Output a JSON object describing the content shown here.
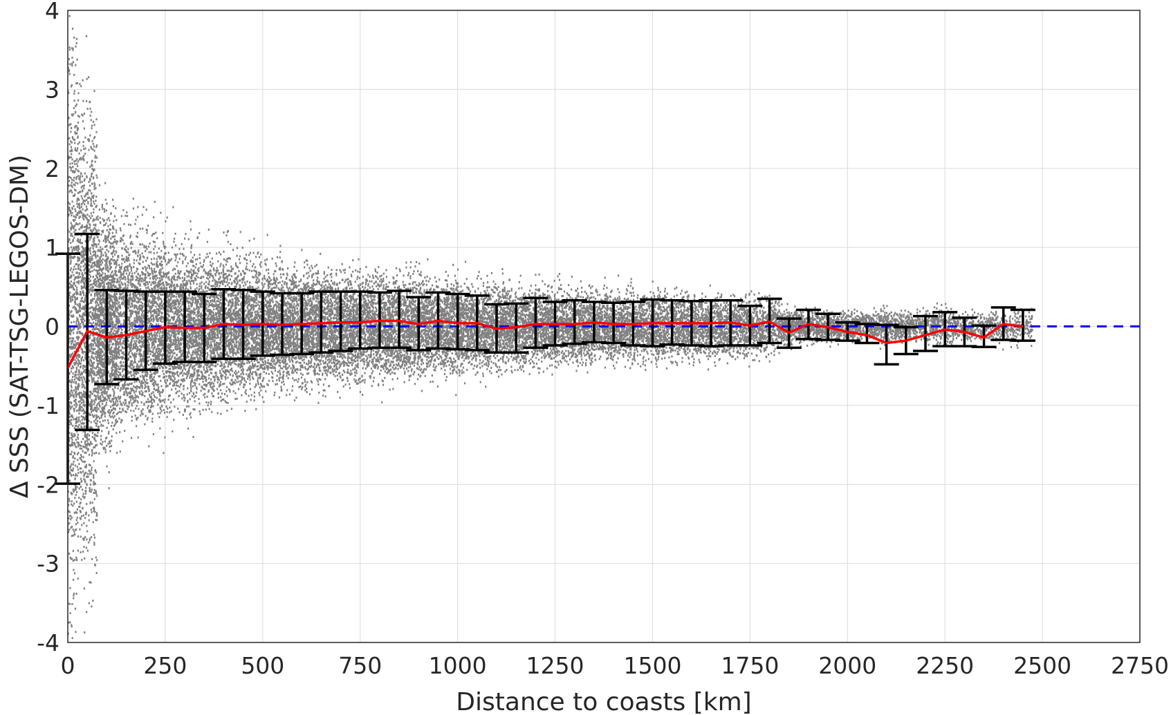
{
  "chart_data": {
    "type": "scatter",
    "xlabel": "Distance to coasts [km]",
    "ylabel": "Δ SSS (SAT-TSG-LEGOS-DM)",
    "xlim": [
      0,
      2750
    ],
    "ylim": [
      -4,
      4
    ],
    "xticks": [
      0,
      250,
      500,
      750,
      1000,
      1250,
      1500,
      1750,
      2000,
      2250,
      2500,
      2750
    ],
    "yticks": [
      -4,
      -3,
      -2,
      -1,
      0,
      1,
      2,
      3,
      4
    ],
    "grid": true,
    "colors": {
      "scatter": "#808080",
      "mean": "#ff0000",
      "errorbar": "#000000",
      "zero": "#0000ff",
      "grid": "#dadada",
      "axis": "#262626"
    },
    "series": [
      {
        "type": "scatter",
        "description_bins": "dense grey cloud of individual differences; spread approximated per 50 km bin",
        "spread_x": [
          0,
          50,
          100,
          150,
          200,
          250,
          300,
          350,
          400,
          450,
          500,
          550,
          600,
          650,
          700,
          750,
          800,
          850,
          900,
          950,
          1000,
          1050,
          1100,
          1150,
          1200,
          1250,
          1300,
          1350,
          1400,
          1450,
          1500,
          1550,
          1600,
          1650,
          1700,
          1750,
          1800,
          1850,
          1900,
          1950,
          2000,
          2050,
          2100,
          2150,
          2200,
          2250,
          2300,
          2350,
          2400,
          2450
        ],
        "spread_halfwidth": [
          4.0,
          3.2,
          1.6,
          1.4,
          1.3,
          1.2,
          1.1,
          1.05,
          1.0,
          0.95,
          0.9,
          0.85,
          0.85,
          0.8,
          0.8,
          0.75,
          0.75,
          0.7,
          0.7,
          0.65,
          0.65,
          0.6,
          0.6,
          0.55,
          0.55,
          0.55,
          0.5,
          0.5,
          0.5,
          0.5,
          0.5,
          0.5,
          0.45,
          0.45,
          0.45,
          0.45,
          0.4,
          0.25,
          0.25,
          0.2,
          0.2,
          0.2,
          0.25,
          0.2,
          0.2,
          0.25,
          0.2,
          0.2,
          0.25,
          0.25
        ]
      },
      {
        "type": "line",
        "name": "mean",
        "x": [
          0,
          50,
          100,
          150,
          200,
          250,
          300,
          350,
          400,
          450,
          500,
          550,
          600,
          650,
          700,
          750,
          800,
          850,
          900,
          950,
          1000,
          1050,
          1100,
          1150,
          1200,
          1250,
          1300,
          1350,
          1400,
          1450,
          1500,
          1550,
          1600,
          1650,
          1700,
          1750,
          1800,
          1850,
          1900,
          1950,
          2000,
          2050,
          2100,
          2150,
          2200,
          2250,
          2300,
          2350,
          2400,
          2450
        ],
        "y": [
          -0.53,
          -0.06,
          -0.14,
          -0.11,
          -0.06,
          -0.01,
          -0.02,
          -0.02,
          0.03,
          0.02,
          0.03,
          0.02,
          0.03,
          0.04,
          0.05,
          0.05,
          0.07,
          0.07,
          0.03,
          0.07,
          0.04,
          0.04,
          -0.03,
          -0.01,
          0.03,
          0.03,
          0.03,
          0.05,
          0.03,
          0.03,
          0.04,
          0.04,
          0.04,
          0.04,
          0.05,
          0.01,
          0.06,
          -0.08,
          0.03,
          -0.01,
          -0.07,
          -0.11,
          -0.21,
          -0.18,
          -0.11,
          -0.04,
          -0.07,
          -0.14,
          0.03,
          0.0
        ]
      },
      {
        "type": "errorbar",
        "name": "std",
        "x": [
          0,
          50,
          100,
          150,
          200,
          250,
          300,
          350,
          400,
          450,
          500,
          550,
          600,
          650,
          700,
          750,
          800,
          850,
          900,
          950,
          1000,
          1050,
          1100,
          1150,
          1200,
          1250,
          1300,
          1350,
          1400,
          1450,
          1500,
          1550,
          1600,
          1650,
          1700,
          1750,
          1800,
          1850,
          1900,
          1950,
          2000,
          2050,
          2100,
          2150,
          2200,
          2250,
          2300,
          2350,
          2400,
          2450
        ],
        "lower": [
          -1.99,
          -1.31,
          -0.73,
          -0.67,
          -0.55,
          -0.47,
          -0.45,
          -0.45,
          -0.41,
          -0.41,
          -0.37,
          -0.36,
          -0.35,
          -0.33,
          -0.31,
          -0.28,
          -0.27,
          -0.27,
          -0.3,
          -0.28,
          -0.29,
          -0.3,
          -0.33,
          -0.33,
          -0.27,
          -0.24,
          -0.22,
          -0.2,
          -0.21,
          -0.24,
          -0.25,
          -0.23,
          -0.24,
          -0.25,
          -0.24,
          -0.24,
          -0.21,
          -0.27,
          -0.16,
          -0.17,
          -0.18,
          -0.21,
          -0.48,
          -0.35,
          -0.31,
          -0.25,
          -0.25,
          -0.26,
          -0.17,
          -0.18
        ],
        "upper": [
          0.92,
          1.17,
          0.46,
          0.45,
          0.44,
          0.44,
          0.44,
          0.41,
          0.47,
          0.46,
          0.44,
          0.42,
          0.42,
          0.44,
          0.44,
          0.44,
          0.43,
          0.45,
          0.37,
          0.43,
          0.41,
          0.39,
          0.28,
          0.29,
          0.36,
          0.31,
          0.33,
          0.31,
          0.3,
          0.31,
          0.34,
          0.33,
          0.32,
          0.33,
          0.33,
          0.26,
          0.35,
          0.1,
          0.21,
          0.16,
          0.05,
          0.03,
          0.02,
          -0.01,
          0.13,
          0.18,
          0.11,
          0.01,
          0.24,
          0.21
        ]
      },
      {
        "type": "line",
        "name": "zero",
        "style": "dashed",
        "y": 0
      }
    ]
  }
}
